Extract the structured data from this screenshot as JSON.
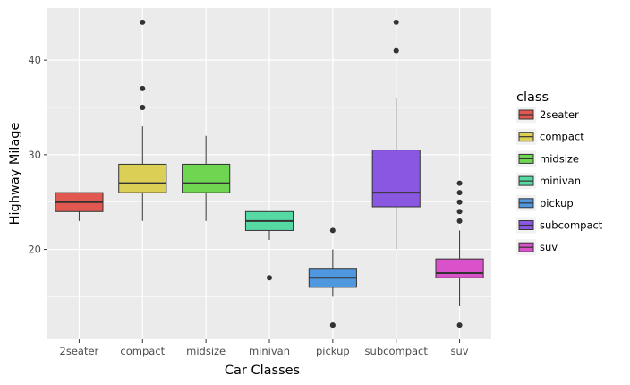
{
  "chart_data": {
    "type": "box",
    "xlabel": "Car Classes",
    "ylabel": "Highway Milage",
    "ylim": [
      10.5,
      45.5
    ],
    "yticks": [
      20,
      30,
      40
    ],
    "grid": true,
    "legend_title": "class",
    "legend_position": "right",
    "categories": [
      "2seater",
      "compact",
      "midsize",
      "minivan",
      "pickup",
      "subcompact",
      "suv"
    ],
    "series": [
      {
        "name": "2seater",
        "color": "#e0584f",
        "q1": 24,
        "median": 25,
        "q3": 26,
        "whisker_low": 23,
        "whisker_high": 26,
        "outliers": []
      },
      {
        "name": "compact",
        "color": "#dccf56",
        "q1": 26,
        "median": 27,
        "q3": 29,
        "whisker_low": 23,
        "whisker_high": 33,
        "outliers": [
          35,
          35,
          37,
          44
        ]
      },
      {
        "name": "midsize",
        "color": "#6fd652",
        "q1": 26,
        "median": 27,
        "q3": 29,
        "whisker_low": 23,
        "whisker_high": 32,
        "outliers": []
      },
      {
        "name": "minivan",
        "color": "#56d9a3",
        "q1": 22,
        "median": 23,
        "q3": 24,
        "whisker_low": 21,
        "whisker_high": 24,
        "outliers": [
          17
        ]
      },
      {
        "name": "pickup",
        "color": "#4f97de",
        "q1": 16,
        "median": 17,
        "q3": 18,
        "whisker_low": 15,
        "whisker_high": 20,
        "outliers": [
          12,
          12,
          22
        ]
      },
      {
        "name": "subcompact",
        "color": "#8a57e2",
        "q1": 24.5,
        "median": 26,
        "q3": 30.5,
        "whisker_low": 20,
        "whisker_high": 36,
        "outliers": [
          41,
          44
        ]
      },
      {
        "name": "suv",
        "color": "#da52c9",
        "q1": 17,
        "median": 17.5,
        "q3": 19,
        "whisker_low": 14,
        "whisker_high": 22,
        "outliers": [
          12,
          23,
          24,
          25,
          26,
          27
        ]
      }
    ]
  }
}
